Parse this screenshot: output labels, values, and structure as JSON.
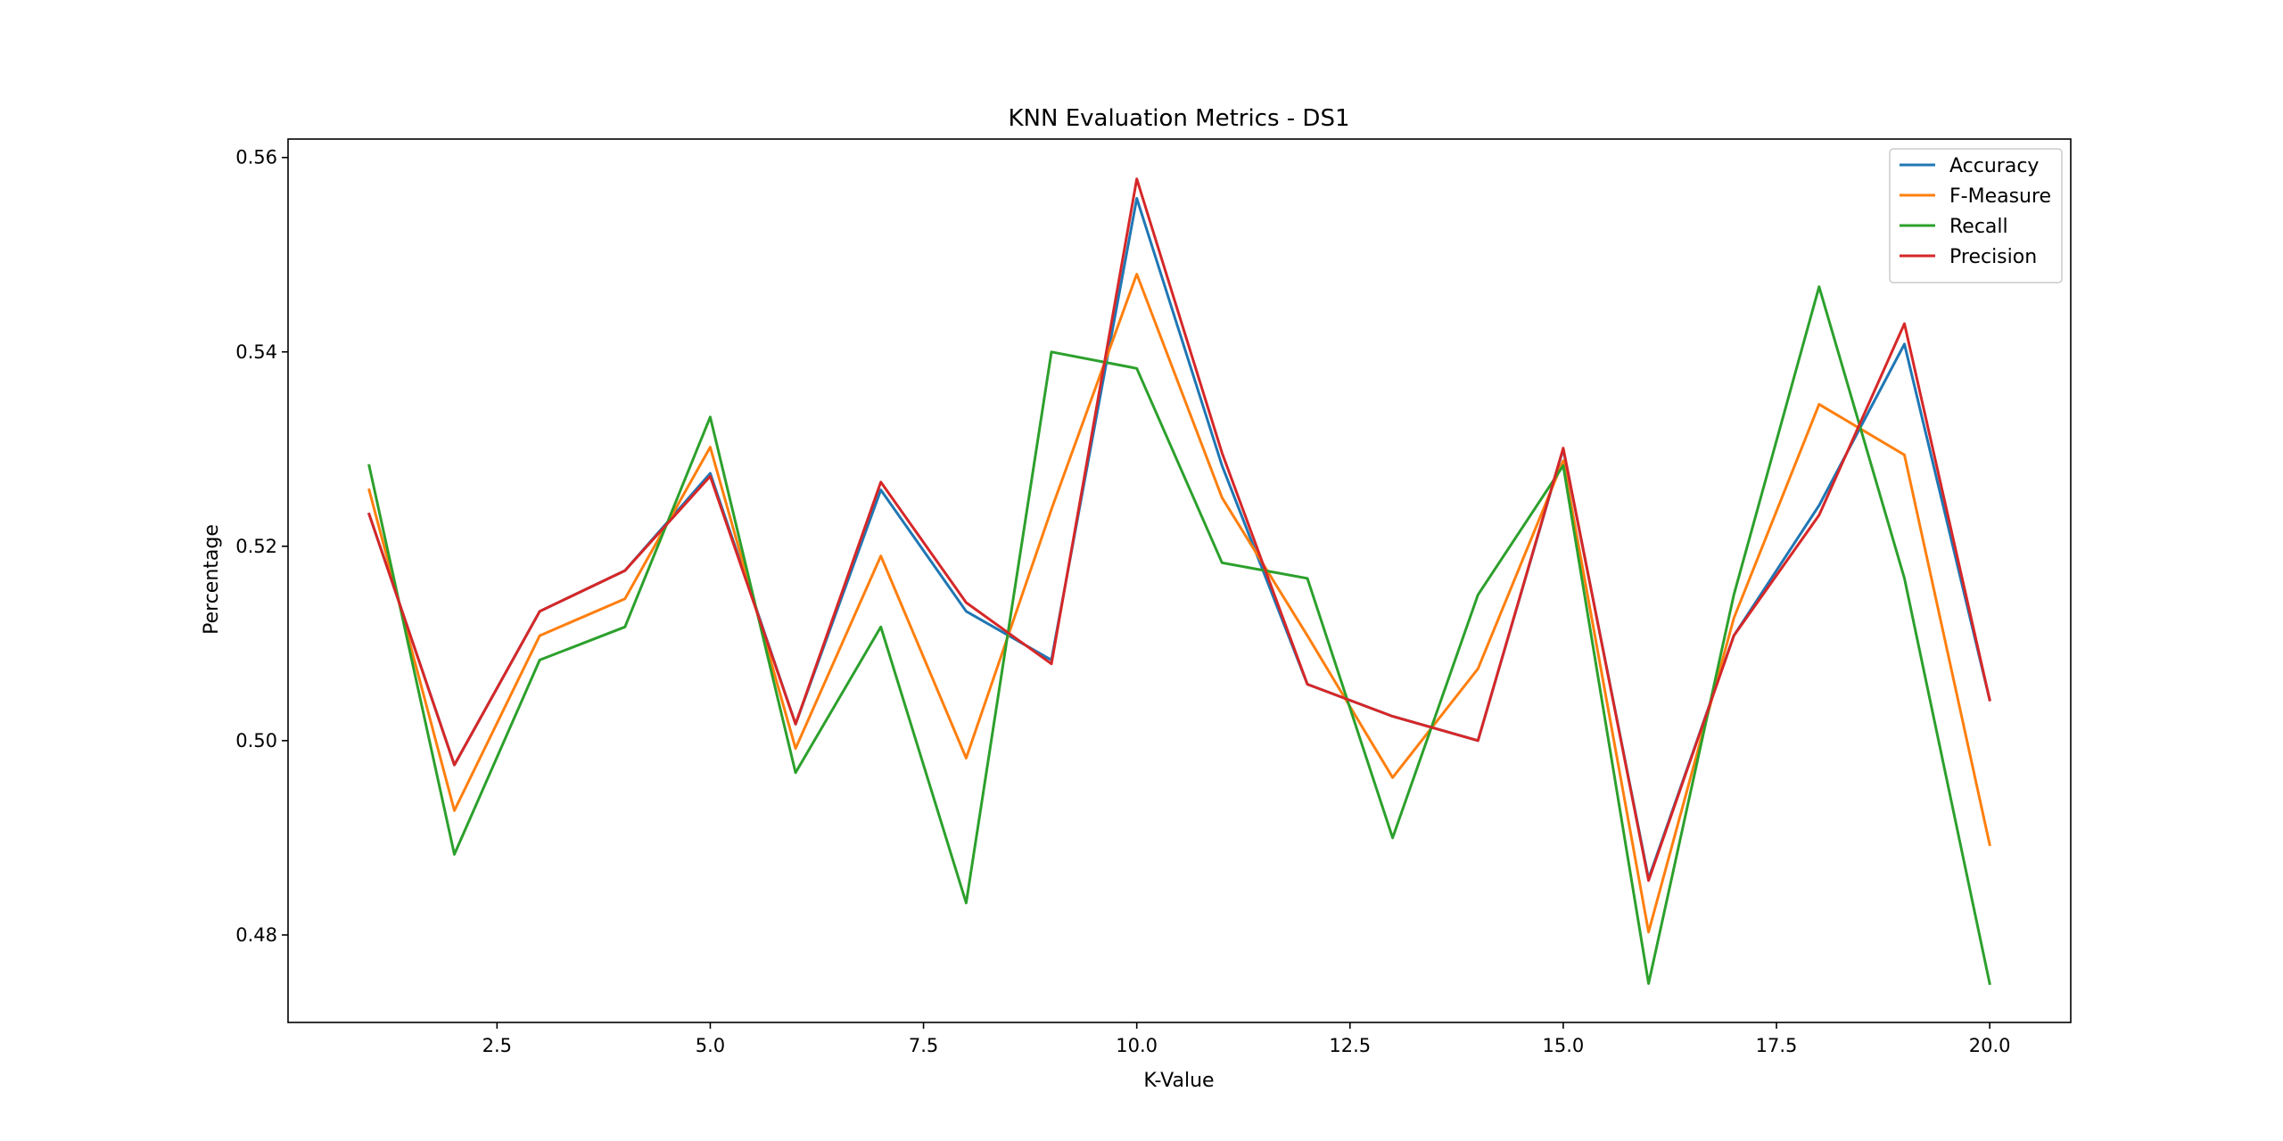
{
  "chart_data": {
    "type": "line",
    "title": "KNN Evaluation Metrics - DS1",
    "xlabel": "K-Value",
    "ylabel": "Percentage",
    "xlim": [
      0.05,
      20.95
    ],
    "ylim": [
      0.471,
      0.5619
    ],
    "x_ticks": [
      2.5,
      5.0,
      7.5,
      10.0,
      12.5,
      15.0,
      17.5,
      20.0
    ],
    "x_tick_labels": [
      "2.5",
      "5.0",
      "7.5",
      "10.0",
      "12.5",
      "15.0",
      "17.5",
      "20.0"
    ],
    "y_ticks": [
      0.48,
      0.5,
      0.52,
      0.54,
      0.56
    ],
    "y_tick_labels": [
      "0.48",
      "0.50",
      "0.52",
      "0.54",
      "0.56"
    ],
    "grid": false,
    "legend_position": "top-right",
    "x": [
      1,
      2,
      3,
      4,
      5,
      6,
      7,
      8,
      9,
      10,
      11,
      12,
      13,
      14,
      15,
      16,
      17,
      18,
      19,
      20
    ],
    "series": [
      {
        "name": "Accuracy",
        "color": "#1f77b4",
        "values": [
          0.5233,
          0.4975,
          0.5133,
          0.5175,
          0.5275,
          0.5017,
          0.5258,
          0.5133,
          0.5083,
          0.5558,
          0.5283,
          0.5058,
          0.5025,
          0.5,
          0.53,
          0.4858,
          0.5108,
          0.5242,
          0.5408,
          0.5042
        ]
      },
      {
        "name": "F-Measure",
        "color": "#ff7f0e",
        "values": [
          0.5258,
          0.4928,
          0.5108,
          0.5146,
          0.5302,
          0.4992,
          0.519,
          0.4982,
          0.5238,
          0.548,
          0.525,
          0.5108,
          0.4962,
          0.5074,
          0.5288,
          0.4803,
          0.5126,
          0.5346,
          0.5294,
          0.4893
        ]
      },
      {
        "name": "Recall",
        "color": "#2ca02c",
        "values": [
          0.5283,
          0.4883,
          0.5083,
          0.5117,
          0.5333,
          0.4967,
          0.5117,
          0.4833,
          0.54,
          0.5383,
          0.5183,
          0.5167,
          0.49,
          0.515,
          0.5283,
          0.475,
          0.515,
          0.5467,
          0.5167,
          0.475
        ]
      },
      {
        "name": "Precision",
        "color": "#d62728",
        "values": [
          0.5233,
          0.4975,
          0.5133,
          0.5175,
          0.5272,
          0.5017,
          0.5266,
          0.5142,
          0.5079,
          0.5578,
          0.5296,
          0.5058,
          0.5025,
          0.5,
          0.5301,
          0.4856,
          0.5108,
          0.5232,
          0.5429,
          0.5042
        ]
      }
    ]
  }
}
